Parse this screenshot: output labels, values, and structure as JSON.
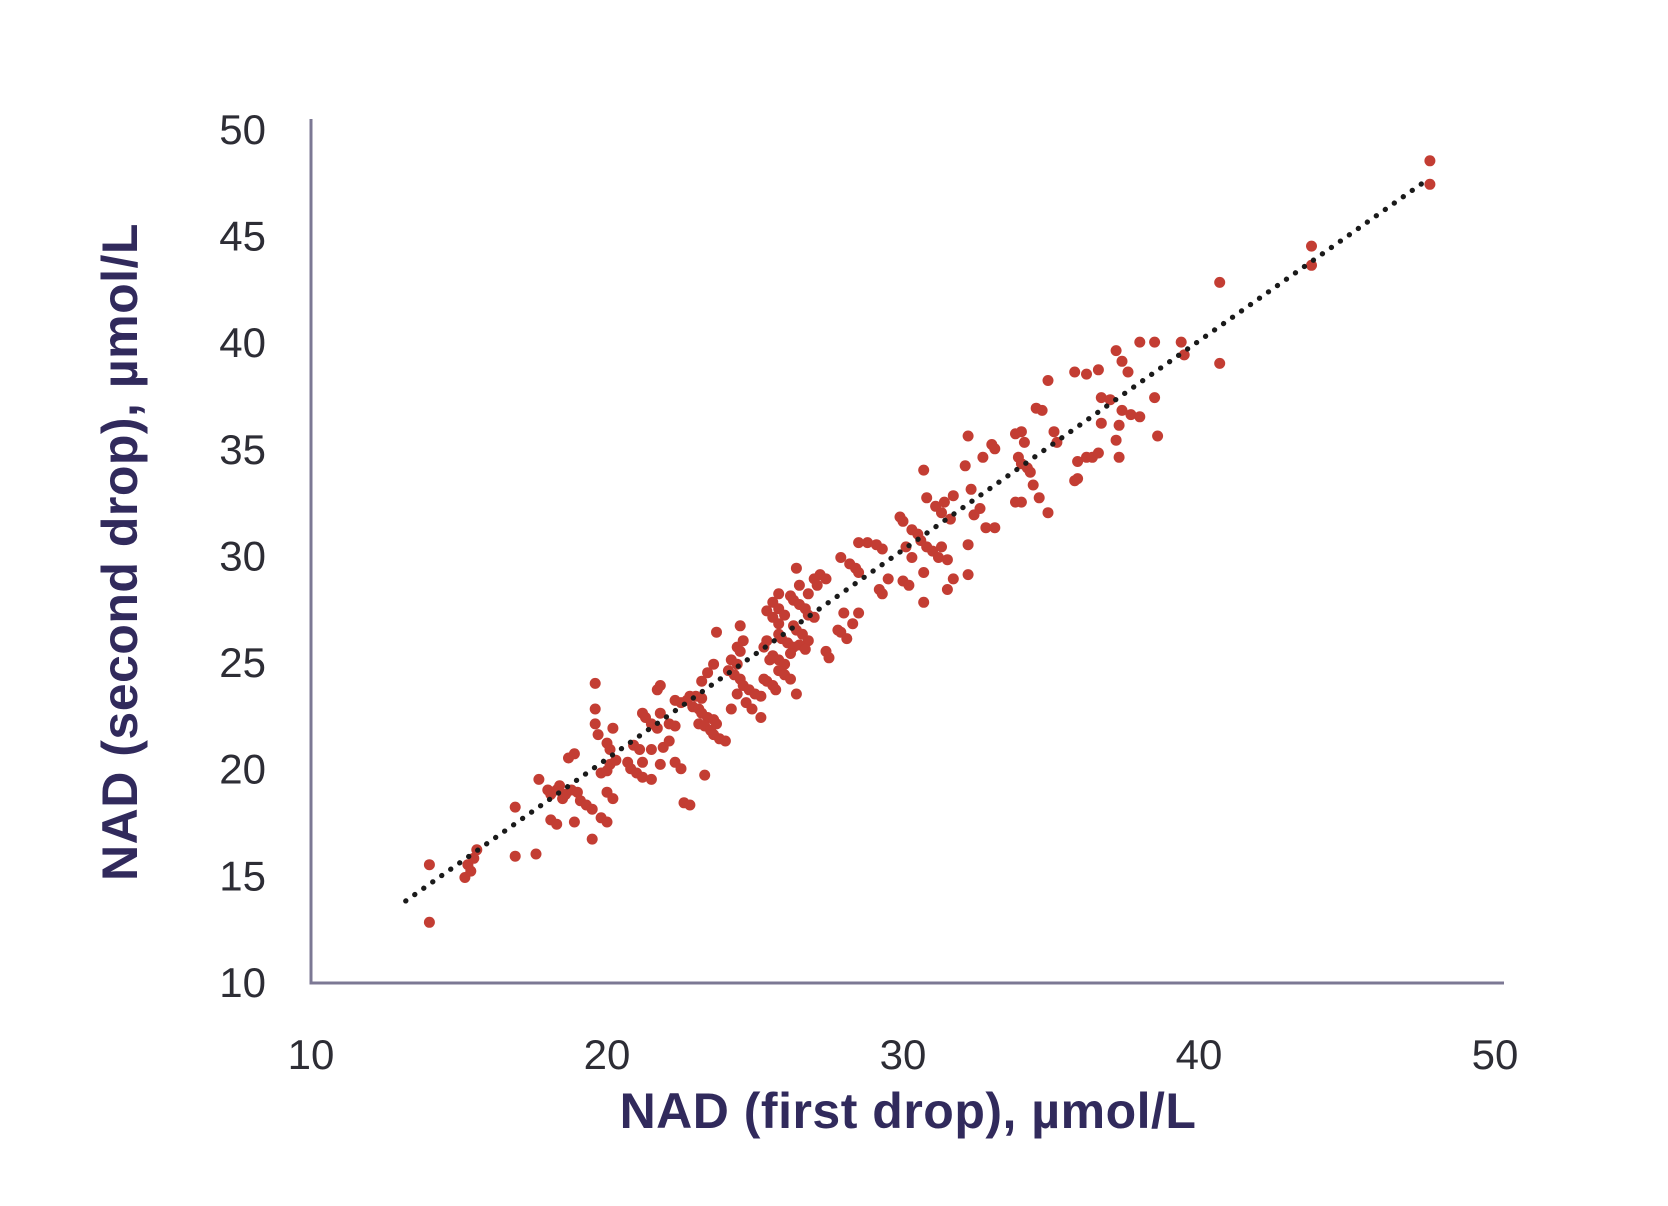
{
  "figure": {
    "background": "#ffffff"
  },
  "chart_data": {
    "type": "scatter",
    "title": "",
    "xlabel": "NAD (first drop), µmol/L",
    "ylabel": "NAD (second drop), µmol/L",
    "xlim": [
      10,
      50
    ],
    "ylim": [
      10,
      50
    ],
    "xticks": [
      10,
      20,
      30,
      40,
      50
    ],
    "yticks": [
      10,
      15,
      20,
      25,
      30,
      35,
      40,
      45,
      50
    ],
    "grid": false,
    "legend": false,
    "colors": {
      "point": "#c33d33",
      "trend": "#1a1a1a",
      "axis": "#7c7894",
      "tick_text": "#2d2d35",
      "title_text": "#312a5c"
    },
    "trend_line": {
      "style": "dotted",
      "x1": 13.2,
      "y1": 13.8,
      "x2": 47.6,
      "y2": 47.5
    },
    "points": [
      [
        14,
        15.5
      ],
      [
        14,
        12.8
      ],
      [
        15.2,
        14.9
      ],
      [
        15.3,
        15.5
      ],
      [
        15.5,
        15.8
      ],
      [
        15.4,
        15.2
      ],
      [
        15.6,
        16.2
      ],
      [
        16.9,
        18.2
      ],
      [
        16.9,
        15.9
      ],
      [
        17.6,
        16
      ],
      [
        17.7,
        19.5
      ],
      [
        18,
        19
      ],
      [
        18.1,
        18.8
      ],
      [
        18.3,
        19
      ],
      [
        18.5,
        18.6
      ],
      [
        18.6,
        18.8
      ],
      [
        18.8,
        19
      ],
      [
        19,
        18.9
      ],
      [
        18.1,
        17.6
      ],
      [
        18.3,
        17.4
      ],
      [
        18.9,
        17.5
      ],
      [
        19.1,
        18.5
      ],
      [
        19.3,
        18.3
      ],
      [
        19.5,
        18.1
      ],
      [
        19.8,
        17.7
      ],
      [
        20,
        17.5
      ],
      [
        19.5,
        16.7
      ],
      [
        18.4,
        19.2
      ],
      [
        18.7,
        20.5
      ],
      [
        18.9,
        20.7
      ],
      [
        20,
        18.9
      ],
      [
        20.2,
        18.6
      ],
      [
        19.6,
        22.8
      ],
      [
        19.6,
        22.1
      ],
      [
        19.7,
        21.6
      ],
      [
        20,
        21.2
      ],
      [
        20.1,
        20.9
      ],
      [
        19.6,
        24
      ],
      [
        19.8,
        19.8
      ],
      [
        20,
        19.9
      ],
      [
        20.1,
        20.2
      ],
      [
        20.3,
        20.4
      ],
      [
        20.2,
        21.9
      ],
      [
        20.7,
        20.3
      ],
      [
        20.9,
        21.1
      ],
      [
        21.1,
        20.9
      ],
      [
        20.8,
        20
      ],
      [
        21,
        19.8
      ],
      [
        21.2,
        19.6
      ],
      [
        21.2,
        20.3
      ],
      [
        21.5,
        20.9
      ],
      [
        21.8,
        20.2
      ],
      [
        21.5,
        19.5
      ],
      [
        21.9,
        21
      ],
      [
        22.1,
        21.3
      ],
      [
        21.2,
        22.6
      ],
      [
        21.3,
        22.4
      ],
      [
        21.5,
        22.1
      ],
      [
        21.7,
        21.9
      ],
      [
        21.8,
        22.6
      ],
      [
        22.1,
        22.1
      ],
      [
        22.3,
        22
      ],
      [
        21.7,
        23.7
      ],
      [
        21.8,
        23.9
      ],
      [
        22.3,
        20.3
      ],
      [
        22.5,
        20
      ],
      [
        23.3,
        19.7
      ],
      [
        22.3,
        23.2
      ],
      [
        22.5,
        23.1
      ],
      [
        22.7,
        23.2
      ],
      [
        22.8,
        23.4
      ],
      [
        23,
        23.4
      ],
      [
        23.2,
        23.3
      ],
      [
        22.9,
        22.9
      ],
      [
        23.1,
        22.8
      ],
      [
        23.2,
        22.6
      ],
      [
        23.4,
        22.4
      ],
      [
        23.6,
        22.3
      ],
      [
        23.1,
        22.1
      ],
      [
        23.3,
        22
      ],
      [
        23.5,
        21.8
      ],
      [
        23.6,
        21.6
      ],
      [
        23.8,
        21.4
      ],
      [
        24,
        21.3
      ],
      [
        23.2,
        24.1
      ],
      [
        23.4,
        24.5
      ],
      [
        23.6,
        24.9
      ],
      [
        23.7,
        22.1
      ],
      [
        24.2,
        22.8
      ],
      [
        23.7,
        26.4
      ],
      [
        24.5,
        26.7
      ],
      [
        24.6,
        26
      ],
      [
        22.6,
        18.4
      ],
      [
        22.8,
        18.3
      ],
      [
        24.4,
        25.7
      ],
      [
        24.5,
        25.5
      ],
      [
        24.2,
        25.1
      ],
      [
        24.4,
        24.9
      ],
      [
        24.1,
        24.6
      ],
      [
        24.3,
        24.4
      ],
      [
        24.5,
        24.2
      ],
      [
        24.6,
        23.9
      ],
      [
        24.8,
        23.7
      ],
      [
        25,
        23.5
      ],
      [
        25.2,
        23.4
      ],
      [
        24.4,
        23.5
      ],
      [
        24.7,
        23.1
      ],
      [
        24.9,
        22.8
      ],
      [
        25.2,
        22.4
      ],
      [
        25.4,
        24.1
      ],
      [
        25.6,
        23.9
      ],
      [
        25.7,
        23.7
      ],
      [
        25.3,
        25.7
      ],
      [
        25.6,
        25.3
      ],
      [
        25.8,
        25.1
      ],
      [
        26,
        24.9
      ],
      [
        25.8,
        26.3
      ],
      [
        25.9,
        26.1
      ],
      [
        26.1,
        25.9
      ],
      [
        26.3,
        25.7
      ],
      [
        25.6,
        27.8
      ],
      [
        25.8,
        28.2
      ],
      [
        25.4,
        27.4
      ],
      [
        26.3,
        26.7
      ],
      [
        26.4,
        26.5
      ],
      [
        26.6,
        26.3
      ],
      [
        26.8,
        26
      ],
      [
        25.8,
        27.5
      ],
      [
        26,
        27.2
      ],
      [
        25.6,
        27.1
      ],
      [
        25.8,
        26.8
      ],
      [
        25.5,
        25.1
      ],
      [
        25.8,
        24.6
      ],
      [
        25.4,
        26
      ],
      [
        25.3,
        24.2
      ],
      [
        26,
        24.4
      ],
      [
        26.2,
        24.2
      ],
      [
        26.4,
        23.5
      ],
      [
        26.5,
        25.8
      ],
      [
        26.7,
        25.6
      ],
      [
        26.2,
        25.4
      ],
      [
        26.2,
        28.1
      ],
      [
        26.3,
        27.9
      ],
      [
        26.5,
        27.7
      ],
      [
        26.7,
        27.5
      ],
      [
        26.8,
        27.2
      ],
      [
        27,
        27.1
      ],
      [
        26.4,
        29.4
      ],
      [
        26.5,
        28.6
      ],
      [
        26.8,
        28.2
      ],
      [
        27.2,
        29.1
      ],
      [
        27.4,
        28.9
      ],
      [
        27,
        28.9
      ],
      [
        27.1,
        28.6
      ],
      [
        27.4,
        25.5
      ],
      [
        27.5,
        25.2
      ],
      [
        27.8,
        26.5
      ],
      [
        27.9,
        26.4
      ],
      [
        28.1,
        26.1
      ],
      [
        28,
        27.3
      ],
      [
        28.3,
        26.8
      ],
      [
        28.5,
        27.3
      ],
      [
        27.9,
        29.9
      ],
      [
        28.2,
        29.6
      ],
      [
        28.4,
        29.4
      ],
      [
        28.5,
        29.2
      ],
      [
        28.8,
        30.6
      ],
      [
        29.1,
        30.5
      ],
      [
        29.3,
        30.3
      ],
      [
        28.5,
        30.6
      ],
      [
        29.2,
        28.4
      ],
      [
        29.3,
        28.2
      ],
      [
        29.9,
        31.8
      ],
      [
        30,
        31.6
      ],
      [
        30.3,
        31.2
      ],
      [
        30.5,
        31
      ],
      [
        30.6,
        30.7
      ],
      [
        30.1,
        30.4
      ],
      [
        30.3,
        29.9
      ],
      [
        30.8,
        30.4
      ],
      [
        31,
        30.2
      ],
      [
        31.2,
        29.9
      ],
      [
        31.3,
        30.4
      ],
      [
        31.5,
        29.8
      ],
      [
        30.7,
        27.8
      ],
      [
        31.5,
        28.4
      ],
      [
        31.7,
        28.9
      ],
      [
        29.5,
        28.9
      ],
      [
        30,
        28.8
      ],
      [
        30.2,
        28.6
      ],
      [
        30.7,
        29.2
      ],
      [
        30.7,
        34
      ],
      [
        30.8,
        32.7
      ],
      [
        31.1,
        32.3
      ],
      [
        31.3,
        32
      ],
      [
        31.4,
        32.5
      ],
      [
        31.6,
        31.7
      ],
      [
        31.7,
        32.8
      ],
      [
        32.3,
        33.1
      ],
      [
        32.6,
        32.2
      ],
      [
        32.4,
        31.9
      ],
      [
        32.8,
        31.3
      ],
      [
        33.1,
        31.3
      ],
      [
        33.8,
        32.5
      ],
      [
        34,
        32.5
      ],
      [
        34.6,
        32.7
      ],
      [
        34.9,
        32
      ],
      [
        32.2,
        30.5
      ],
      [
        32.2,
        29.1
      ],
      [
        32.1,
        34.2
      ],
      [
        32.7,
        34.6
      ],
      [
        33,
        35.2
      ],
      [
        33.1,
        35
      ],
      [
        32.2,
        35.6
      ],
      [
        33.8,
        35.7
      ],
      [
        34,
        35.8
      ],
      [
        34.1,
        35.3
      ],
      [
        33.9,
        34.6
      ],
      [
        34,
        34.3
      ],
      [
        34.2,
        34.1
      ],
      [
        34.3,
        33.9
      ],
      [
        34.4,
        33.3
      ],
      [
        34.5,
        36.9
      ],
      [
        35.1,
        35.8
      ],
      [
        35.2,
        35.3
      ],
      [
        35.9,
        34.4
      ],
      [
        36.2,
        34.6
      ],
      [
        36.4,
        34.6
      ],
      [
        36.6,
        34.8
      ],
      [
        35.8,
        33.5
      ],
      [
        35.9,
        33.6
      ],
      [
        37.2,
        35.4
      ],
      [
        38.6,
        35.6
      ],
      [
        37.3,
        34.6
      ],
      [
        34.9,
        38.2
      ],
      [
        34.7,
        36.8
      ],
      [
        35.8,
        38.6
      ],
      [
        36.2,
        38.5
      ],
      [
        36.6,
        38.7
      ],
      [
        37.2,
        39.6
      ],
      [
        37.4,
        39.1
      ],
      [
        37.6,
        38.6
      ],
      [
        38,
        40
      ],
      [
        38.5,
        40
      ],
      [
        39.4,
        40
      ],
      [
        39.5,
        39.4
      ],
      [
        40.7,
        39
      ],
      [
        36.7,
        37.4
      ],
      [
        37,
        37.3
      ],
      [
        38.5,
        37.4
      ],
      [
        37.4,
        36.8
      ],
      [
        37.7,
        36.6
      ],
      [
        38,
        36.5
      ],
      [
        36.7,
        36.2
      ],
      [
        37.3,
        36.1
      ],
      [
        40.7,
        42.8
      ],
      [
        43.8,
        44.5
      ],
      [
        43.8,
        43.6
      ],
      [
        47.8,
        48.5
      ],
      [
        47.8,
        47.4
      ]
    ]
  }
}
